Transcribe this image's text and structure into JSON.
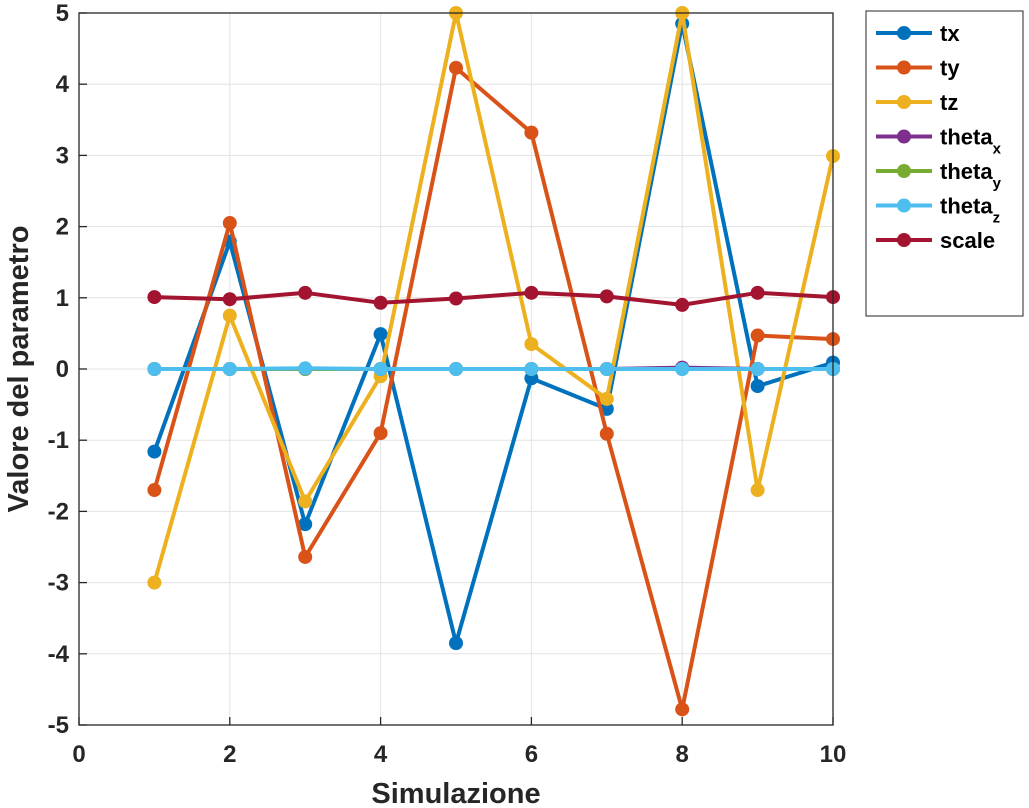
{
  "chart_data": {
    "type": "line",
    "xlabel": "Simulazione",
    "ylabel": "Valore del parametro",
    "xlim": [
      0,
      10
    ],
    "ylim": [
      -5,
      5
    ],
    "xticks": [
      0,
      2,
      4,
      6,
      8,
      10
    ],
    "yticks": [
      -5,
      -4,
      -3,
      -2,
      -1,
      0,
      1,
      2,
      3,
      4,
      5
    ],
    "grid": true,
    "legend_position": "outside-top-right",
    "x": [
      1,
      2,
      3,
      4,
      5,
      6,
      7,
      8,
      9,
      10
    ],
    "series": [
      {
        "name": "tx",
        "name_main": "tx",
        "name_sub": "",
        "color": "#0072BD",
        "values": [
          -1.16,
          1.79,
          -2.18,
          0.49,
          -3.85,
          -0.13,
          -0.56,
          4.85,
          -0.24,
          0.09
        ]
      },
      {
        "name": "ty",
        "name_main": "ty",
        "name_sub": "",
        "color": "#D95319",
        "values": [
          -1.7,
          2.05,
          -2.64,
          -0.9,
          4.23,
          3.32,
          -0.91,
          -4.78,
          0.47,
          0.42
        ]
      },
      {
        "name": "tz",
        "name_main": "tz",
        "name_sub": "",
        "color": "#EDB120",
        "values": [
          -3.0,
          0.75,
          -1.86,
          -0.1,
          5.0,
          0.35,
          -0.42,
          5.0,
          -1.7,
          2.99
        ]
      },
      {
        "name": "theta_x",
        "name_main": "theta",
        "name_sub": "x",
        "color": "#7E2F8E",
        "values": [
          0,
          0,
          0,
          0,
          0,
          0,
          0,
          0.02,
          0,
          0
        ]
      },
      {
        "name": "theta_y",
        "name_main": "theta",
        "name_sub": "y",
        "color": "#77AC30",
        "values": [
          0,
          0,
          0,
          0,
          0,
          0,
          0,
          0,
          0,
          0
        ]
      },
      {
        "name": "theta_z",
        "name_main": "theta",
        "name_sub": "z",
        "color": "#4DBEEE",
        "values": [
          0,
          0,
          0.01,
          0,
          0,
          0,
          0,
          0,
          0,
          0
        ]
      },
      {
        "name": "scale",
        "name_main": "scale",
        "name_sub": "",
        "color": "#A2142F",
        "values": [
          1.01,
          0.98,
          1.07,
          0.93,
          0.99,
          1.07,
          1.02,
          0.9,
          1.07,
          1.01
        ]
      }
    ]
  }
}
